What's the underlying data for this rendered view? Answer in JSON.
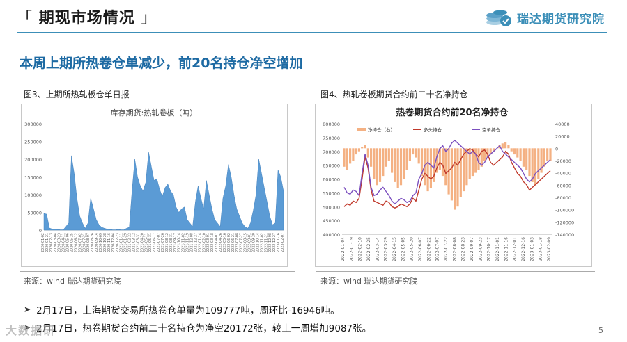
{
  "header": {
    "title": "期现市场情况",
    "bracket_open": "「",
    "bracket_close": "」"
  },
  "logo": {
    "text": "瑞达期货研究院",
    "icon": "coins-check-icon"
  },
  "subheading": "本周上期所热卷仓单减少，前20名持仓净空增加",
  "figures": [
    {
      "caption": "图3、上期所热轧板仓单日报",
      "source": "来源：wind   瑞达期货研究院"
    },
    {
      "caption": "图4、热轧卷板期货合约前二十名净持仓",
      "source": "来源：wind   瑞达期货研究院"
    }
  ],
  "bullets": [
    "2月17日，上海期货交易所热卷仓单量为109777吨，周环比-16946吨。",
    "2月17日，热卷期货合约前二十名持仓为净空20172张，较上一周增加9087张。"
  ],
  "page_number": "5",
  "watermark": "大数据研",
  "colors": {
    "accent": "#1d6aa3",
    "bar_blue": "#5b9bd5",
    "bar_orange": "#f4b183",
    "long_line": "#c0392b",
    "short_line": "#7b4fbf"
  },
  "chart_data": [
    {
      "type": "area",
      "title": "库存期货:热轧卷板（吨）",
      "ylim": [
        0,
        300000
      ],
      "yticks": [
        "300000",
        "250000",
        "200000",
        "150000",
        "100000",
        "50000",
        "0"
      ],
      "xticks": [
        "2020-01-02",
        "2020-01-21",
        "2020-02-13",
        "2020-03-04",
        "2020-03-23",
        "2020-04-11",
        "2020-05-06",
        "2020-05-25",
        "2020-06-12",
        "2020-07-02",
        "2020-07-21",
        "2020-08-07",
        "2020-08-26",
        "2020-09-14",
        "2020-10-09",
        "2020-10-28",
        "2020-11-16",
        "2020-12-04",
        "2020-12-23",
        "2021-01-11",
        "2021-01-29",
        "2021-02-22",
        "2021-03-12",
        "2021-03-31",
        "2021-04-20",
        "2021-05-11",
        "2021-05-31",
        "2021-06-17",
        "2021-07-07",
        "2021-07-26",
        "2021-08-12",
        "2021-08-31",
        "2021-09-17",
        "2021-10-14",
        "2021-11-02",
        "2021-11-19",
        "2021-12-08",
        "2021-12-27",
        "2022-01-14",
        "2022-02-10",
        "2022-03-01",
        "2022-03-18",
        "2022-04-07",
        "2022-04-26",
        "2022-05-16",
        "2022-06-02",
        "2022-06-21",
        "2022-07-08",
        "2022-07-27",
        "2022-08-15",
        "2022-09-01",
        "2022-09-20",
        "2022-10-14",
        "2022-11-02",
        "2022-11-21",
        "2022-12-08",
        "2022-12-27",
        "2023-01-16",
        "2023-02-07"
      ],
      "values": [
        47000,
        45000,
        6000,
        3000,
        3000,
        2000,
        1000,
        1000,
        10000,
        20000,
        210000,
        160000,
        90000,
        40000,
        20000,
        5000,
        20000,
        90000,
        60000,
        30000,
        15000,
        8000,
        5000,
        3000,
        2000,
        1000,
        1000,
        2000,
        1000,
        1000,
        5000,
        8000,
        110000,
        200000,
        150000,
        125000,
        110000,
        135000,
        220000,
        180000,
        140000,
        145000,
        115000,
        95000,
        120000,
        130000,
        110000,
        100000,
        65000,
        50000,
        60000,
        65000,
        30000,
        20000,
        10000,
        80000,
        125000,
        90000,
        60000,
        140000,
        100000,
        60000,
        30000,
        20000,
        10000,
        90000,
        125000,
        185000,
        150000,
        100000,
        60000,
        40000,
        20000,
        10000,
        5000,
        20000,
        55000,
        100000,
        200000,
        160000,
        120000,
        80000,
        40000,
        15000,
        20000,
        170000,
        150000,
        110000
      ]
    },
    {
      "type": "bar+line",
      "title": "热卷期货合约前20名净持仓",
      "legend": [
        "净持仓（右）",
        "多头持仓",
        "空单持仓"
      ],
      "ylim_left": [
        400000,
        800000
      ],
      "yticks_left": [
        "800000",
        "750000",
        "700000",
        "650000",
        "600000",
        "550000",
        "500000",
        "450000",
        "400000"
      ],
      "ylim_right": [
        -140000,
        40000
      ],
      "yticks_right": [
        "40000",
        "20000",
        "0",
        "-20000",
        "-40000",
        "-60000",
        "-80000",
        "-100000",
        "-120000",
        "-140000"
      ],
      "xticks": [
        "2022-01-04",
        "2022-01-19",
        "2022-02-10",
        "2022-02-25",
        "2022-03-14",
        "2022-03-29",
        "2022-04-15",
        "2022-05-05",
        "2022-05-20",
        "2022-06-07",
        "2022-06-22",
        "2022-07-07",
        "2022-07-22",
        "2022-08-08",
        "2022-08-23",
        "2022-09-07",
        "2022-09-23",
        "2022-10-17",
        "2022-11-01",
        "2022-11-16",
        "2022-12-01",
        "2022-12-16",
        "2023-01-03",
        "2023-01-18",
        "2023-02-09"
      ],
      "series": [
        {
          "name": "净持仓（右）",
          "values": [
            -30000,
            -35000,
            -25000,
            -20000,
            -10000,
            -5000,
            2000,
            5000,
            -15000,
            -30000,
            -50000,
            -60000,
            -55000,
            -45000,
            -30000,
            -20000,
            -40000,
            -55000,
            -65000,
            -60000,
            -50000,
            -35000,
            -20000,
            -10000,
            -15000,
            -25000,
            -45000,
            -60000,
            -70000,
            -65000,
            -55000,
            -40000,
            -35000,
            -45000,
            -60000,
            -75000,
            -85000,
            -100000,
            -95000,
            -80000,
            -70000,
            -60000,
            -50000,
            -45000,
            -40000,
            -35000,
            -30000,
            -20000,
            -15000,
            -10000,
            -5000,
            0,
            5000,
            8000,
            10000,
            5000,
            -5000,
            -10000,
            -15000,
            -20000,
            -30000,
            -35000,
            -45000,
            -55000,
            -60000,
            -50000,
            -40000,
            -30000,
            -20000,
            -20172
          ]
        },
        {
          "name": "多头持仓",
          "values": [
            500000,
            510000,
            505000,
            520000,
            515000,
            530000,
            600000,
            680000,
            640000,
            560000,
            520000,
            515000,
            510000,
            505000,
            520000,
            515000,
            500000,
            495000,
            500000,
            510000,
            505000,
            500000,
            510000,
            530000,
            520000,
            560000,
            600000,
            620000,
            610000,
            600000,
            610000,
            640000,
            660000,
            650000,
            620000,
            630000,
            640000,
            660000,
            650000,
            670000,
            690000,
            700000,
            710000,
            705000,
            690000,
            680000,
            700000,
            705000,
            690000,
            660000,
            650000,
            660000,
            670000,
            680000,
            700000,
            690000,
            660000,
            640000,
            620000,
            610000,
            590000,
            580000,
            560000,
            570000,
            580000,
            590000,
            600000,
            610000,
            620000,
            630000
          ]
        },
        {
          "name": "空单持仓",
          "values": [
            570000,
            550000,
            545000,
            560000,
            555000,
            540000,
            620000,
            690000,
            650000,
            570000,
            540000,
            545000,
            560000,
            570000,
            555000,
            540000,
            520000,
            510000,
            520000,
            530000,
            525000,
            515000,
            520000,
            540000,
            550000,
            600000,
            620000,
            650000,
            660000,
            650000,
            640000,
            680000,
            710000,
            720000,
            700000,
            710000,
            730000,
            740000,
            730000,
            720000,
            710000,
            700000,
            690000,
            700000,
            690000,
            660000,
            650000,
            660000,
            680000,
            690000,
            700000,
            710000,
            720000,
            700000,
            690000,
            680000,
            670000,
            660000,
            650000,
            640000,
            620000,
            600000,
            590000,
            600000,
            620000,
            630000,
            640000,
            650000,
            660000,
            670000
          ]
        }
      ]
    }
  ]
}
